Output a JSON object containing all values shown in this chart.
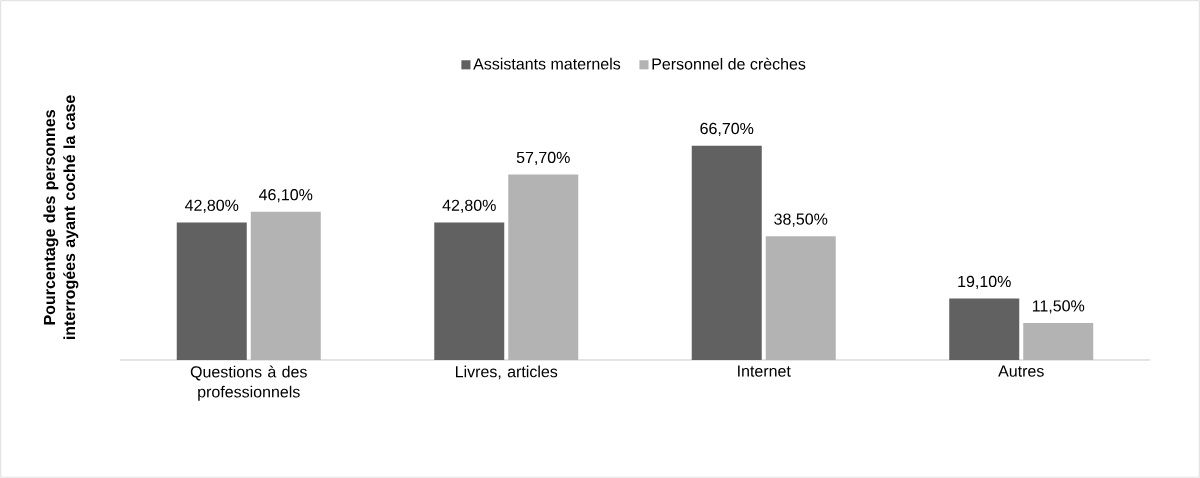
{
  "chart_data": {
    "type": "bar",
    "ylabel": "Pourcentage des personnes interrogées ayant coché la case",
    "categories": [
      "Questions à des professionnels",
      "Livres, articles",
      "Internet",
      "Autres"
    ],
    "series": [
      {
        "name": "Assistants maternels",
        "color": "#616161",
        "values": [
          42.8,
          42.8,
          66.7,
          19.1
        ],
        "value_labels": [
          "42,80%",
          "42,80%",
          "66,70%",
          "19,10%"
        ]
      },
      {
        "name": "Personnel de crèches",
        "color": "#b3b3b3",
        "values": [
          46.1,
          57.7,
          38.5,
          11.5
        ],
        "value_labels": [
          "46,10%",
          "57,70%",
          "38,50%",
          "11,50%"
        ]
      }
    ],
    "legend": "top"
  }
}
